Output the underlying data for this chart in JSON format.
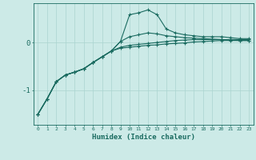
{
  "xlabel": "Humidex (Indice chaleur)",
  "x": [
    0,
    1,
    2,
    3,
    4,
    5,
    6,
    7,
    8,
    9,
    10,
    11,
    12,
    13,
    14,
    15,
    16,
    17,
    18,
    19,
    20,
    21,
    22,
    23
  ],
  "line_top": [
    -1.5,
    -1.18,
    -0.82,
    -0.68,
    -0.62,
    -0.55,
    -0.42,
    -0.3,
    -0.18,
    0.02,
    0.58,
    0.62,
    0.68,
    0.58,
    0.28,
    0.2,
    0.16,
    0.14,
    0.12,
    0.12,
    0.12,
    0.1,
    0.08,
    0.08
  ],
  "line_mid": [
    -1.5,
    -1.18,
    -0.82,
    -0.68,
    -0.62,
    -0.55,
    -0.42,
    -0.3,
    -0.18,
    0.02,
    0.12,
    0.16,
    0.2,
    0.18,
    0.14,
    0.12,
    0.1,
    0.09,
    0.08,
    0.07,
    0.06,
    0.05,
    0.04,
    0.04
  ],
  "line_low1": [
    -1.5,
    -1.18,
    -0.82,
    -0.68,
    -0.62,
    -0.55,
    -0.42,
    -0.3,
    -0.18,
    -0.1,
    -0.06,
    -0.04,
    -0.02,
    0.0,
    0.02,
    0.04,
    0.05,
    0.06,
    0.06,
    0.06,
    0.06,
    0.06,
    0.06,
    0.06
  ],
  "line_low2": [
    -1.5,
    -1.18,
    -0.82,
    -0.68,
    -0.62,
    -0.55,
    -0.42,
    -0.3,
    -0.18,
    -0.12,
    -0.1,
    -0.08,
    -0.06,
    -0.05,
    -0.03,
    -0.02,
    -0.01,
    0.01,
    0.02,
    0.03,
    0.04,
    0.04,
    0.04,
    0.04
  ],
  "bg_color": "#cceae7",
  "line_color": "#1a6b60",
  "grid_color": "#aad4d0",
  "yticks": [
    -1,
    0
  ],
  "ylim": [
    -1.72,
    0.82
  ],
  "xlim": [
    -0.5,
    23.5
  ]
}
